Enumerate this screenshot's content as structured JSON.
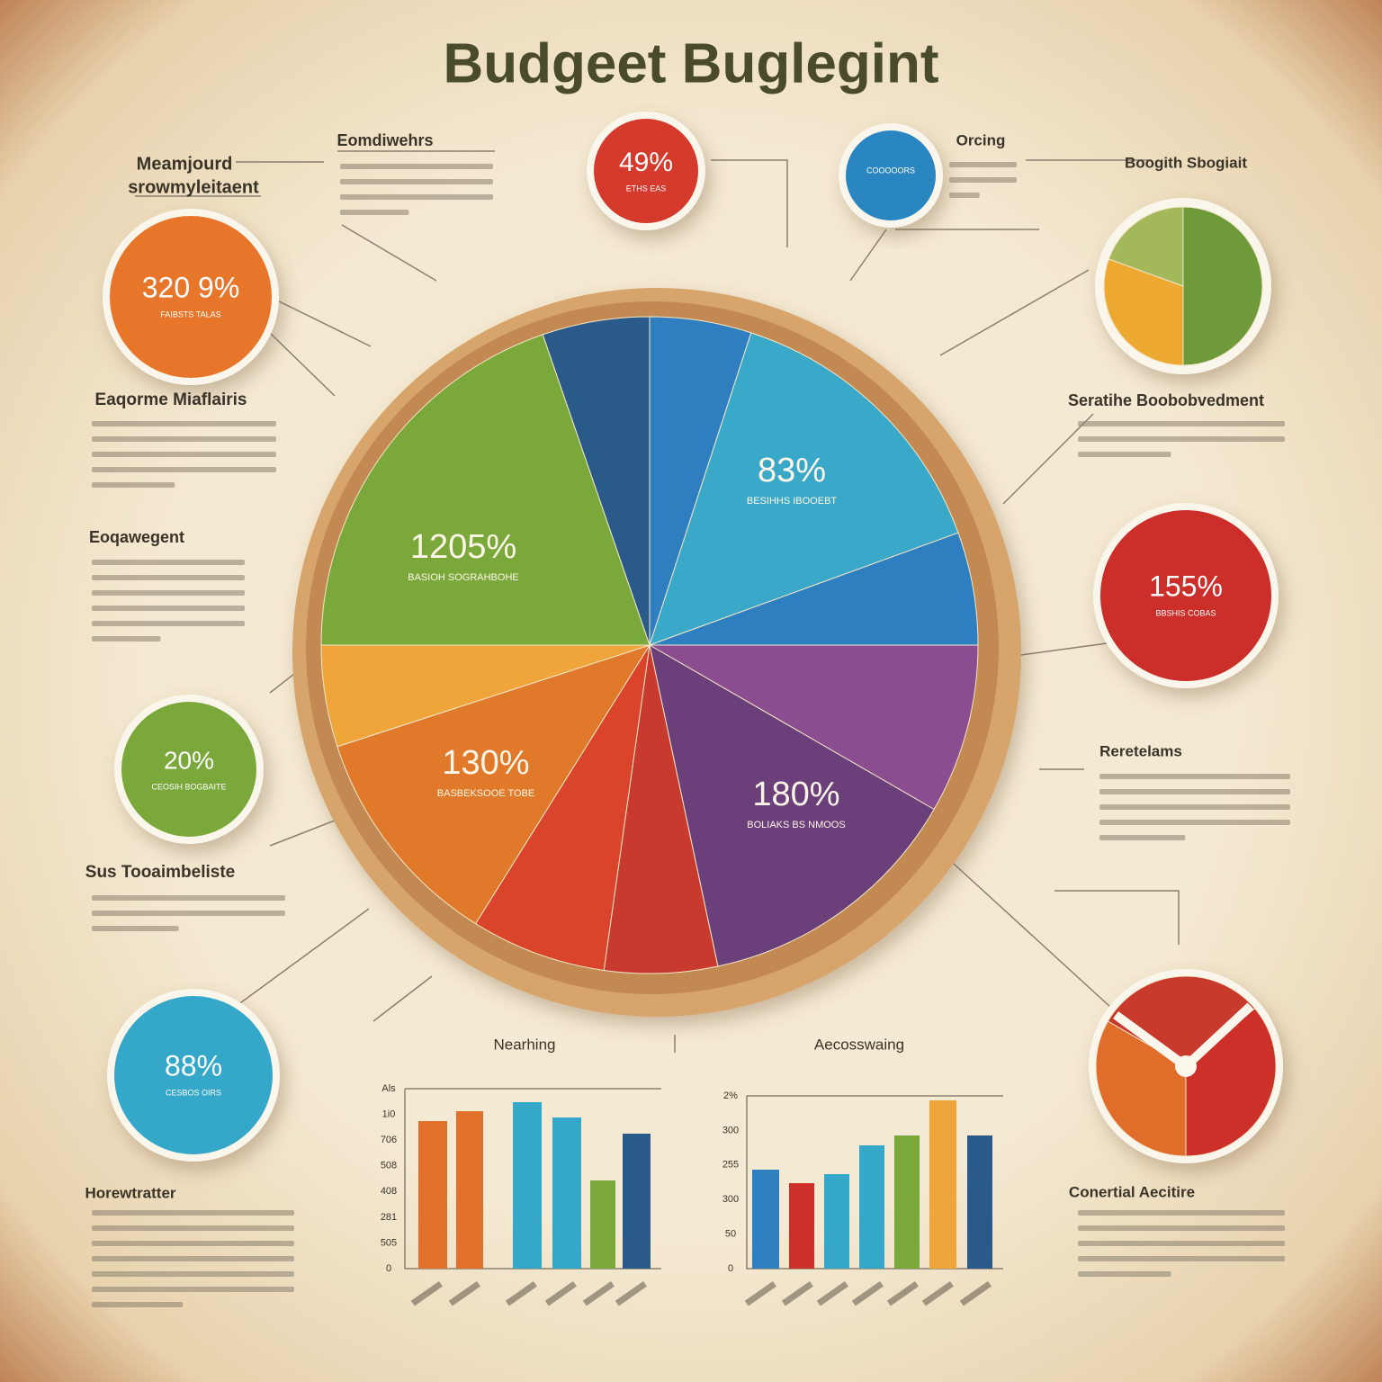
{
  "title": "Budgeet Buglegint",
  "main_pie": {
    "labels": [
      {
        "value": "1205%",
        "caption": "BASIOH SOGRAHBOHE"
      },
      {
        "value": "83%",
        "caption": "BESIHHS IBOOEBT"
      },
      {
        "value": "130%",
        "caption": "BASBEKSOOE TOBE"
      },
      {
        "value": "180%",
        "caption": "BOLIAKS BS NMOOS"
      }
    ]
  },
  "badges": [
    {
      "value": "49%",
      "caption": "ETHS EAS"
    },
    {
      "value": "320 9%",
      "caption": "FAIBSTS TALAS"
    },
    {
      "value": "155%",
      "caption": "BBSHIS COBAS"
    },
    {
      "value": "20%",
      "caption": "CEOSIH BOGBAITE"
    },
    {
      "value": "88%",
      "caption": "CESBOS OIRS"
    },
    {
      "caption": "COOOOORS"
    }
  ],
  "headings": [
    "Meamjourd",
    "srowmyleitaent",
    "Eomdiwehrs",
    "Orcing",
    "Boogith Sbogiait",
    "Eaqorme Miaflairis",
    "Seratihe Boobobvedment",
    "Eoqawegent",
    "Reretelams",
    "Sus Tooaimbeliste",
    "Horewtratter",
    "Conertial Aecitire"
  ],
  "bar_charts": [
    {
      "title": "Nearhing",
      "ticks": [
        "Als",
        "1i0",
        "706",
        "508",
        "408",
        "281",
        "505",
        "0"
      ]
    },
    {
      "title": "Aecosswaing",
      "ticks": [
        "2%",
        "300",
        "255",
        "300",
        "50",
        "0"
      ]
    }
  ]
}
